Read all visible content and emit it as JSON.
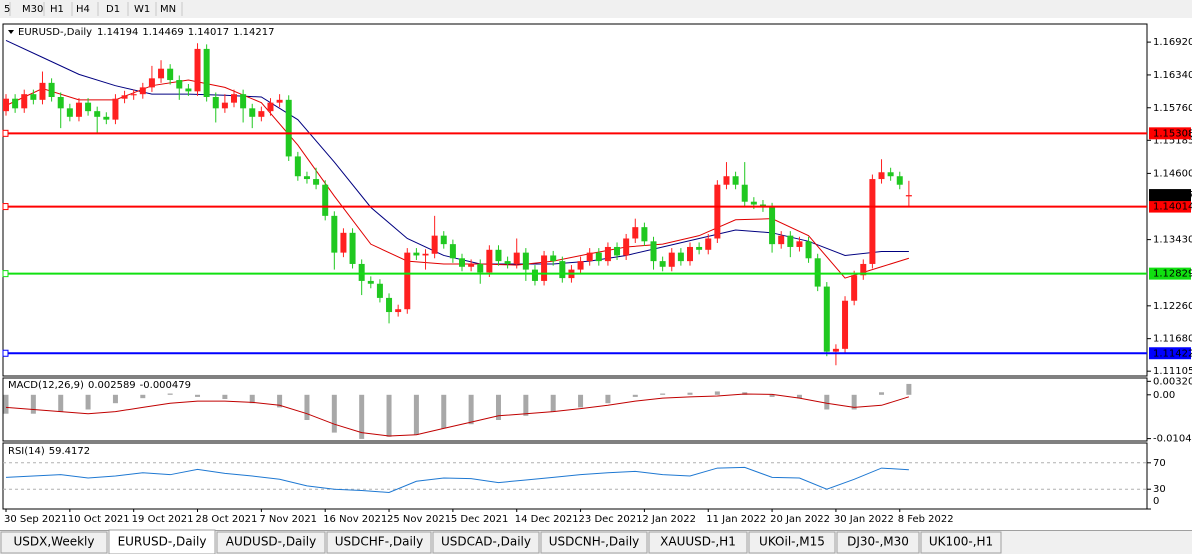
{
  "toolbar": {
    "timeframes": [
      "5",
      "M30",
      "H1",
      "H4",
      "D1",
      "W1",
      "MN"
    ]
  },
  "tabs": {
    "active": 1,
    "items": [
      "USDX,Weekly",
      "EURUSD-,Daily",
      "AUDUSD-,Daily",
      "USDCHF-,Daily",
      "USDCAD-,Daily",
      "USDCNH-,Daily",
      "XAUUSD-,H1",
      "UKOil-,M15",
      "DJ30-,M30",
      "UK100-,H1"
    ]
  },
  "chart_data": [
    {
      "type": "candlestick",
      "title": "EURUSD-,Daily",
      "categories": [
        "30 Sep 2021",
        null,
        null,
        null,
        null,
        null,
        null,
        "10 Oct 2021",
        null,
        null,
        null,
        null,
        null,
        null,
        "19 Oct 2021",
        null,
        null,
        null,
        null,
        null,
        null,
        "28 Oct 2021",
        null,
        null,
        null,
        null,
        null,
        null,
        "7 Nov 2021",
        null,
        null,
        null,
        null,
        null,
        null,
        "16 Nov 2021",
        null,
        null,
        null,
        null,
        null,
        null,
        "25 Nov 2021",
        null,
        null,
        null,
        null,
        null,
        null,
        "5 Dec 2021",
        null,
        null,
        null,
        null,
        null,
        null,
        "14 Dec 2021",
        null,
        null,
        null,
        null,
        null,
        null,
        "23 Dec 2021",
        null,
        null,
        null,
        null,
        null,
        null,
        "2 Jan 2022",
        null,
        null,
        null,
        null,
        null,
        null,
        "11 Jan 2022",
        null,
        null,
        null,
        null,
        null,
        null,
        "20 Jan 2022",
        null,
        null,
        null,
        null,
        null,
        null,
        "30 Jan 2022",
        null,
        null,
        null,
        null,
        null,
        null,
        "8 Feb 2022",
        null
      ],
      "open": [
        1.157,
        1.1592,
        1.1575,
        1.16,
        1.159,
        1.162,
        1.1595,
        1.1575,
        1.156,
        1.1585,
        1.157,
        1.156,
        1.1555,
        1.1592,
        1.1598,
        1.16,
        1.1612,
        1.1628,
        1.1645,
        1.1625,
        1.161,
        1.1605,
        1.168,
        1.1595,
        1.1575,
        1.1585,
        1.16,
        1.1575,
        1.156,
        1.157,
        1.1585,
        1.159,
        1.149,
        1.1455,
        1.145,
        1.144,
        1.1385,
        1.132,
        1.1355,
        1.13,
        1.127,
        1.1265,
        1.124,
        1.1215,
        1.122,
        1.132,
        1.1315,
        1.1318,
        1.135,
        1.1335,
        1.131,
        1.1295,
        1.13,
        1.1285,
        1.1325,
        1.1305,
        1.13,
        1.132,
        1.129,
        1.127,
        1.1315,
        1.1305,
        1.1275,
        1.129,
        1.1305,
        1.132,
        1.1305,
        1.133,
        1.1315,
        1.1345,
        1.1365,
        1.134,
        1.1305,
        1.1295,
        1.132,
        1.1305,
        1.133,
        1.1325,
        1.1345,
        1.144,
        1.1455,
        1.144,
        1.141,
        1.1405,
        1.14,
        1.1335,
        1.135,
        1.133,
        1.134,
        1.131,
        1.126,
        1.1145,
        1.115,
        1.1235,
        1.128,
        1.13,
        1.145,
        1.1462,
        1.1455,
        1.14194
      ],
      "high": [
        1.16,
        1.16,
        1.1608,
        1.1608,
        1.164,
        1.1628,
        1.1603,
        1.1583,
        1.1593,
        1.1593,
        1.1578,
        1.1568,
        1.16,
        1.1606,
        1.1608,
        1.162,
        1.165,
        1.166,
        1.1653,
        1.1633,
        1.1618,
        1.169,
        1.1688,
        1.1603,
        1.16,
        1.1608,
        1.1608,
        1.1583,
        1.1578,
        1.1593,
        1.16,
        1.1598,
        1.1498,
        1.1463,
        1.147,
        1.1448,
        1.1393,
        1.1363,
        1.1363,
        1.1308,
        1.1278,
        1.1273,
        1.1248,
        1.1228,
        1.1328,
        1.1328,
        1.1326,
        1.1385,
        1.1358,
        1.1343,
        1.1318,
        1.1308,
        1.1308,
        1.1333,
        1.1333,
        1.1313,
        1.1345,
        1.1328,
        1.1298,
        1.1323,
        1.1323,
        1.1313,
        1.1298,
        1.1313,
        1.1328,
        1.1328,
        1.1338,
        1.1338,
        1.1353,
        1.138,
        1.1373,
        1.1348,
        1.1313,
        1.1328,
        1.1328,
        1.1338,
        1.1338,
        1.1353,
        1.1448,
        1.148,
        1.1463,
        1.148,
        1.1418,
        1.1413,
        1.1408,
        1.1358,
        1.1358,
        1.1348,
        1.1348,
        1.1318,
        1.1268,
        1.1158,
        1.1243,
        1.1288,
        1.1308,
        1.1458,
        1.1485,
        1.147,
        1.1463,
        1.14469
      ],
      "low": [
        1.1562,
        1.1567,
        1.1567,
        1.1582,
        1.1582,
        1.1587,
        1.154,
        1.1552,
        1.1552,
        1.1562,
        1.153,
        1.1547,
        1.1547,
        1.1584,
        1.159,
        1.1592,
        1.1604,
        1.162,
        1.1617,
        1.159,
        1.1597,
        1.1597,
        1.1587,
        1.155,
        1.1567,
        1.1577,
        1.155,
        1.154,
        1.1552,
        1.1562,
        1.1577,
        1.1482,
        1.1447,
        1.1442,
        1.1432,
        1.1377,
        1.129,
        1.1312,
        1.1292,
        1.1245,
        1.1257,
        1.1232,
        1.1195,
        1.1207,
        1.1212,
        1.1307,
        1.129,
        1.131,
        1.1327,
        1.1302,
        1.1287,
        1.1287,
        1.1265,
        1.1277,
        1.1297,
        1.1292,
        1.1292,
        1.127,
        1.1262,
        1.1262,
        1.1297,
        1.1267,
        1.1267,
        1.1282,
        1.1297,
        1.1297,
        1.1297,
        1.1307,
        1.1307,
        1.1337,
        1.1332,
        1.129,
        1.1287,
        1.1287,
        1.1297,
        1.1297,
        1.1317,
        1.1317,
        1.1337,
        1.1432,
        1.1432,
        1.1402,
        1.1397,
        1.1392,
        1.132,
        1.1327,
        1.1312,
        1.1322,
        1.1302,
        1.1252,
        1.1137,
        1.1121,
        1.1142,
        1.1227,
        1.1272,
        1.1292,
        1.1442,
        1.1447,
        1.1432,
        1.14017
      ],
      "close": [
        1.1592,
        1.1575,
        1.16,
        1.159,
        1.162,
        1.1595,
        1.1575,
        1.156,
        1.1585,
        1.157,
        1.156,
        1.1555,
        1.1592,
        1.1598,
        1.16,
        1.1612,
        1.1628,
        1.1645,
        1.1625,
        1.161,
        1.1605,
        1.168,
        1.1595,
        1.1575,
        1.1585,
        1.16,
        1.1575,
        1.156,
        1.157,
        1.1585,
        1.159,
        1.149,
        1.1455,
        1.145,
        1.144,
        1.1385,
        1.132,
        1.1355,
        1.13,
        1.127,
        1.1265,
        1.124,
        1.1215,
        1.122,
        1.132,
        1.1315,
        1.1318,
        1.135,
        1.1335,
        1.131,
        1.1295,
        1.13,
        1.1285,
        1.1325,
        1.1305,
        1.13,
        1.132,
        1.129,
        1.127,
        1.1315,
        1.1305,
        1.1275,
        1.129,
        1.1305,
        1.132,
        1.1305,
        1.133,
        1.1315,
        1.1345,
        1.1365,
        1.134,
        1.1305,
        1.1295,
        1.132,
        1.1305,
        1.133,
        1.1325,
        1.1345,
        1.144,
        1.1455,
        1.144,
        1.141,
        1.1405,
        1.14,
        1.1335,
        1.135,
        1.133,
        1.134,
        1.131,
        1.126,
        1.1145,
        1.115,
        1.1235,
        1.128,
        1.13,
        1.145,
        1.1462,
        1.1455,
        1.144,
        1.14217
      ],
      "up_color": "#ff2020",
      "down_color": "#20c820",
      "ylim": [
        1.1102,
        1.1724
      ],
      "yticks": [
        {
          "value": 1.1692,
          "label": "1.16920"
        },
        {
          "value": 1.1634,
          "label": "1.16340"
        },
        {
          "value": 1.1576,
          "label": "1.15760"
        },
        1.15185,
        {
          "value": 1.146,
          "label": "1.14600"
        },
        {
          "value": 1.1343,
          "label": "1.13430"
        },
        {
          "value": 1.1226,
          "label": "1.12260"
        },
        {
          "value": 1.1168,
          "label": "1.11680"
        },
        1.11105
      ],
      "moving_averages": [
        {
          "color": "#000080",
          "x": [
            0,
            4,
            8,
            12,
            16,
            20,
            24,
            28,
            32,
            36,
            40,
            44,
            48,
            52,
            56,
            60,
            64,
            68,
            72,
            76,
            80,
            84,
            88,
            92,
            96,
            99
          ],
          "values": [
            1.1695,
            1.1665,
            1.1635,
            1.1615,
            1.16,
            1.16,
            1.1598,
            1.1595,
            1.1555,
            1.148,
            1.14,
            1.1345,
            1.1315,
            1.13,
            1.13,
            1.13,
            1.1305,
            1.1315,
            1.133,
            1.1345,
            1.136,
            1.1355,
            1.134,
            1.1315,
            1.1322,
            1.1322
          ]
        },
        {
          "color": "#e00000",
          "x": [
            0,
            4,
            8,
            12,
            16,
            20,
            24,
            28,
            32,
            36,
            40,
            44,
            48,
            52,
            56,
            60,
            64,
            68,
            72,
            76,
            80,
            84,
            88,
            92,
            96,
            99
          ],
          "values": [
            1.158,
            1.161,
            1.159,
            1.159,
            1.1615,
            1.1625,
            1.1612,
            1.1585,
            1.151,
            1.142,
            1.1335,
            1.1305,
            1.13,
            1.13,
            1.1298,
            1.1305,
            1.1318,
            1.133,
            1.1335,
            1.135,
            1.1378,
            1.138,
            1.135,
            1.1275,
            1.1295,
            1.131
          ]
        }
      ],
      "levels": [
        {
          "value": 1.15308,
          "color": "#ff0000"
        },
        {
          "value": 1.14014,
          "color": "#ff0000"
        },
        {
          "value": 1.12829,
          "color": "#10e010"
        },
        {
          "value": 1.11422,
          "color": "#0000ff"
        }
      ]
    },
    {
      "type": "macd",
      "title": "MACD(12,26,9)",
      "x": [
        0,
        3,
        6,
        9,
        12,
        15,
        18,
        21,
        24,
        27,
        30,
        33,
        36,
        39,
        42,
        45,
        48,
        51,
        54,
        57,
        60,
        63,
        66,
        69,
        72,
        75,
        78,
        81,
        84,
        87,
        90,
        93,
        96,
        99
      ],
      "histogram": {
        "color": "#a8a8a8",
        "values": [
          -0.0045,
          -0.0045,
          -0.004,
          -0.0035,
          -0.002,
          -0.0008,
          0.0003,
          -0.0005,
          -0.001,
          -0.002,
          -0.003,
          -0.006,
          -0.009,
          -0.0105,
          -0.01,
          -0.0095,
          -0.008,
          -0.007,
          -0.006,
          -0.005,
          -0.004,
          -0.003,
          -0.002,
          -0.0005,
          0.0003,
          0.0005,
          0.0008,
          0.0006,
          -0.0005,
          -0.0008,
          -0.0035,
          -0.0035,
          0.0006,
          0.002589
        ]
      },
      "signal": {
        "color": "#c00000",
        "values": [
          -0.003,
          -0.0035,
          -0.004,
          -0.0045,
          -0.004,
          -0.003,
          -0.002,
          -0.0015,
          -0.0015,
          -0.0018,
          -0.0025,
          -0.0045,
          -0.007,
          -0.009,
          -0.0098,
          -0.0095,
          -0.008,
          -0.0065,
          -0.005,
          -0.0045,
          -0.004,
          -0.0033,
          -0.0025,
          -0.0015,
          -0.0008,
          -0.0005,
          -0.0003,
          0.0002,
          0.0001,
          -0.0008,
          -0.002,
          -0.003,
          -0.0025,
          -0.000479
        ]
      },
      "ylim": [
        -0.011,
        0.004
      ],
      "yticks": [
        0.003209,
        {
          "value": 0,
          "label": "0.00"
        },
        -0.01043
      ]
    },
    {
      "type": "rsi",
      "title": "RSI(14)",
      "x": [
        0,
        3,
        6,
        9,
        12,
        15,
        18,
        21,
        24,
        27,
        30,
        33,
        36,
        39,
        42,
        45,
        48,
        51,
        54,
        57,
        60,
        63,
        66,
        69,
        72,
        75,
        78,
        81,
        84,
        87,
        90,
        93,
        96,
        99
      ],
      "color": "#1e78d2",
      "values": [
        48,
        50,
        52,
        47,
        50,
        55,
        52,
        60,
        54,
        50,
        45,
        35,
        30,
        28,
        25,
        42,
        47,
        46,
        40,
        44,
        48,
        52,
        55,
        57,
        52,
        50,
        62,
        63,
        48,
        47,
        30,
        45,
        62,
        59.4172
      ],
      "ylim": [
        0,
        100
      ],
      "yticks": [
        70,
        30,
        0
      ],
      "level_style": "dashed"
    }
  ]
}
